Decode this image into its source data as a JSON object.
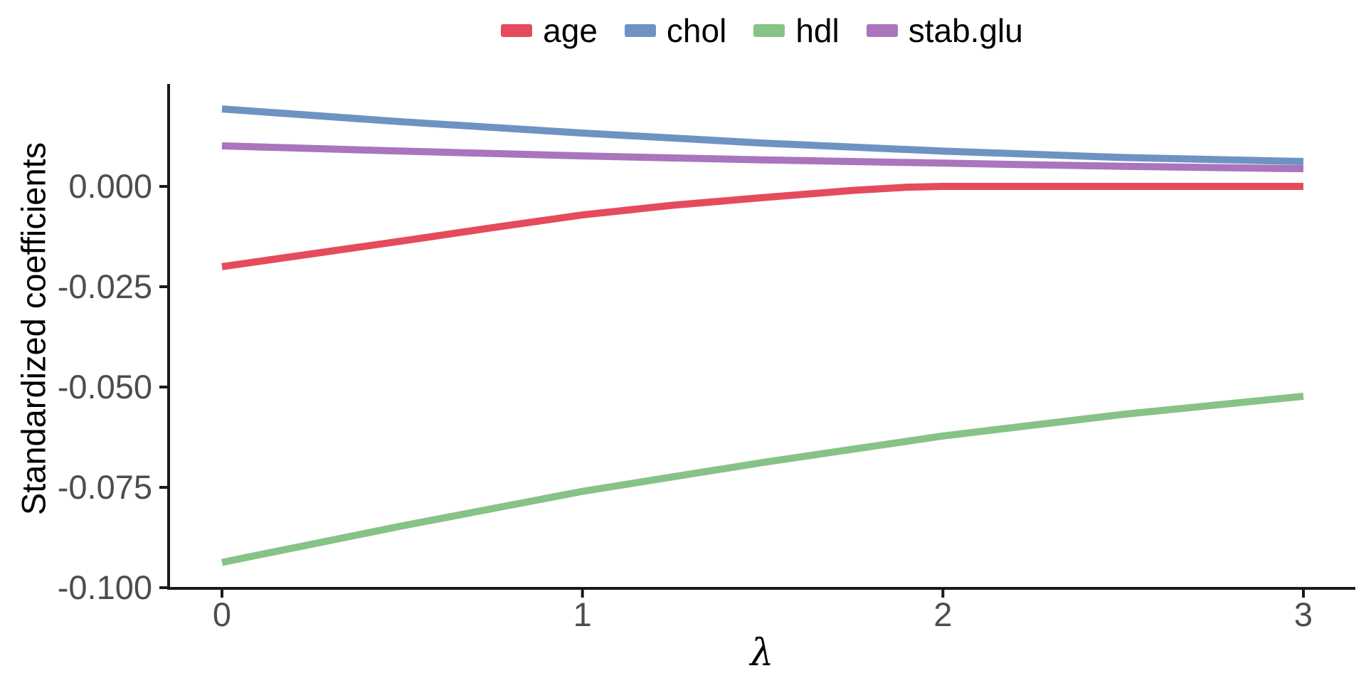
{
  "chart_data": {
    "type": "line",
    "title": "",
    "xlabel": "λ",
    "ylabel": "Standardized coefficients",
    "x_tick_labels": [
      "0",
      "1",
      "2",
      "3"
    ],
    "x_tick_values": [
      0,
      1,
      2,
      3
    ],
    "y_tick_labels": [
      "0.000",
      "-0.025",
      "-0.050",
      "-0.075",
      "-0.100"
    ],
    "y_tick_values": [
      0.0,
      -0.025,
      -0.05,
      -0.075,
      -0.1
    ],
    "xlim": [
      -0.15,
      3.15
    ],
    "ylim": [
      -0.0997,
      0.0251
    ],
    "grid": false,
    "legend_position": "top-center",
    "axis_color": "#1a1a1a",
    "tick_label_color": "#4d4d4d",
    "line_width": 10,
    "series": [
      {
        "name": "age",
        "color": "#e54b5d",
        "x": [
          0,
          0.25,
          0.5,
          0.75,
          1,
          1.25,
          1.5,
          1.75,
          1.9,
          2,
          2.5,
          3
        ],
        "y": [
          -0.02,
          -0.0168,
          -0.0136,
          -0.0103,
          -0.0071,
          -0.0047,
          -0.0028,
          -0.001,
          -0.0002,
          0.0,
          0.0,
          0.0
        ]
      },
      {
        "name": "chol",
        "color": "#6e93c2",
        "x": [
          0,
          0.5,
          1,
          1.5,
          2,
          2.5,
          3
        ],
        "y": [
          0.0193,
          0.0161,
          0.0133,
          0.0108,
          0.0088,
          0.0072,
          0.0062
        ]
      },
      {
        "name": "hdl",
        "color": "#87c286",
        "x": [
          0,
          0.5,
          1,
          1.5,
          2,
          2.5,
          3
        ],
        "y": [
          -0.0937,
          -0.0846,
          -0.076,
          -0.0688,
          -0.0622,
          -0.0568,
          -0.0523
        ]
      },
      {
        "name": "stab.glu",
        "color": "#aa75bc",
        "x": [
          0,
          0.5,
          1,
          1.5,
          2,
          2.5,
          3
        ],
        "y": [
          0.0101,
          0.0088,
          0.0076,
          0.0066,
          0.0058,
          0.005,
          0.0044
        ]
      }
    ]
  }
}
